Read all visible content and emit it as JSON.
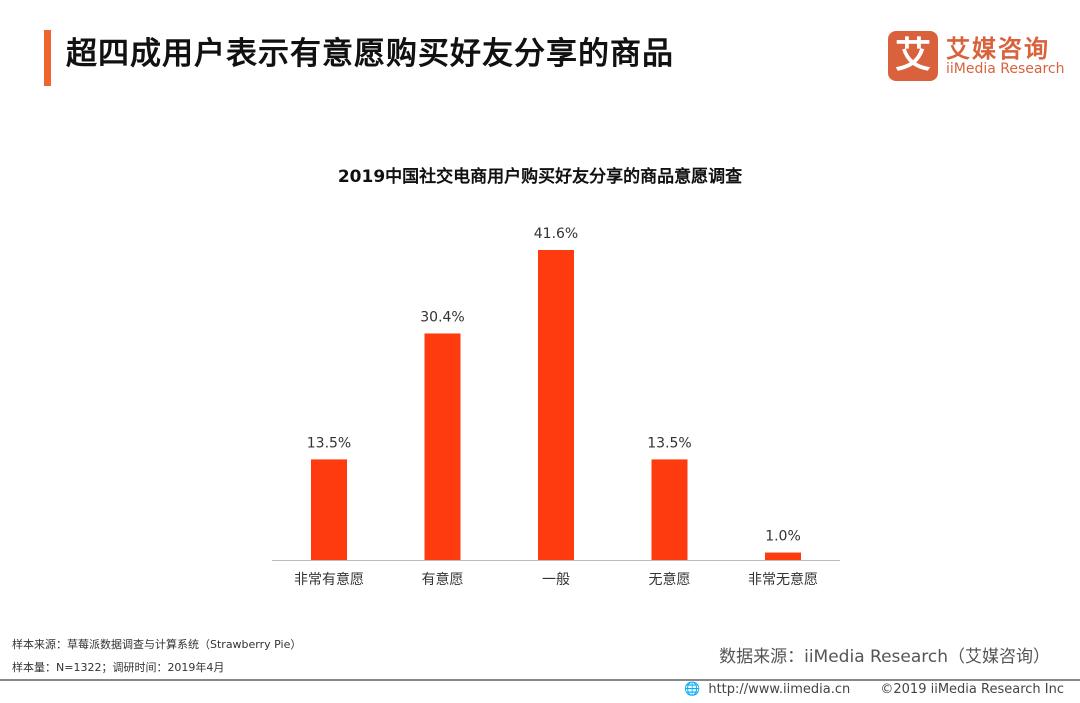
{
  "header": {
    "title": "超四成用户表示有意愿购买好友分享的商品"
  },
  "logo": {
    "mark": "艾",
    "cn": "艾媒咨询",
    "en": "iiMedia Research"
  },
  "chart_data": {
    "type": "bar",
    "title": "2019中国社交电商用户购买好友分享的商品意愿调查",
    "categories": [
      "非常有意愿",
      "有意愿",
      "一般",
      "无意愿",
      "非常无意愿"
    ],
    "values": [
      13.5,
      30.4,
      41.6,
      13.5,
      1.0
    ],
    "value_labels": [
      "13.5%",
      "30.4%",
      "41.6%",
      "13.5%",
      "1.0%"
    ],
    "unit": "%",
    "xlabel": "",
    "ylabel": "",
    "ylim": [
      0,
      41.6
    ],
    "grid": false,
    "color": "#fe3b0f"
  },
  "footer": {
    "sample_source": "样本来源：草莓派数据调查与计算系统（Strawberry Pie）",
    "sample_size": "样本量：N=1322；调研时间：2019年4月",
    "data_source": "数据来源：iiMedia Research（艾媒咨询）",
    "url": "http://www.iimedia.cn",
    "copyright": "©2019  iiMedia Research Inc"
  }
}
